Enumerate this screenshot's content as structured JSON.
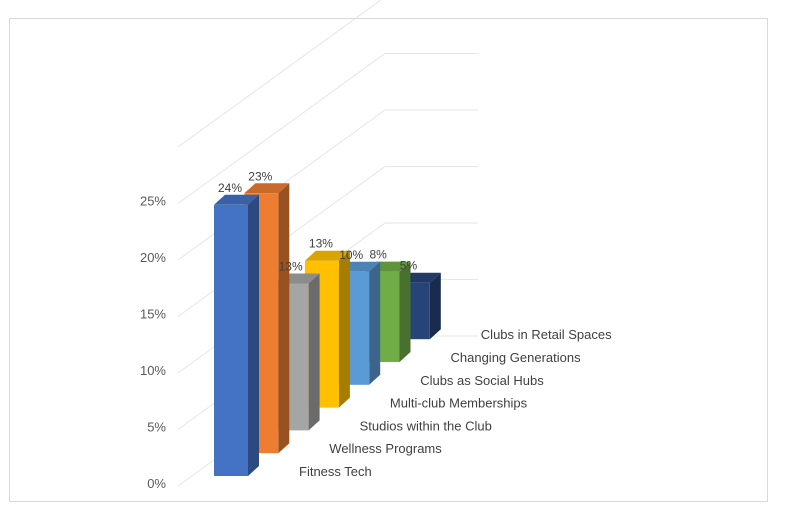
{
  "chart_data": {
    "type": "bar",
    "subtype": "3d-column",
    "categories": [
      "Fitness Tech",
      "Wellness Programs",
      "Studios within the Club",
      "Multi-club Memberships",
      "Clubs as Social Hubs",
      "Changing Generations",
      "Clubs in Retail Spaces"
    ],
    "values": [
      24,
      23,
      13,
      13,
      10,
      8,
      5
    ],
    "data_labels": [
      "24%",
      "23%",
      "13%",
      "13%",
      "10%",
      "8%",
      "5%"
    ],
    "colors": [
      "#4472c4",
      "#ed7d31",
      "#a5a5a5",
      "#ffc000",
      "#5b9bd5",
      "#70ad47",
      "#264478"
    ],
    "title": "",
    "xlabel": "",
    "ylabel": "",
    "ylim": [
      0,
      25
    ],
    "yticks": [
      "0%",
      "5%",
      "10%",
      "15%",
      "20%",
      "25%"
    ],
    "grid": true,
    "legend": "none"
  }
}
